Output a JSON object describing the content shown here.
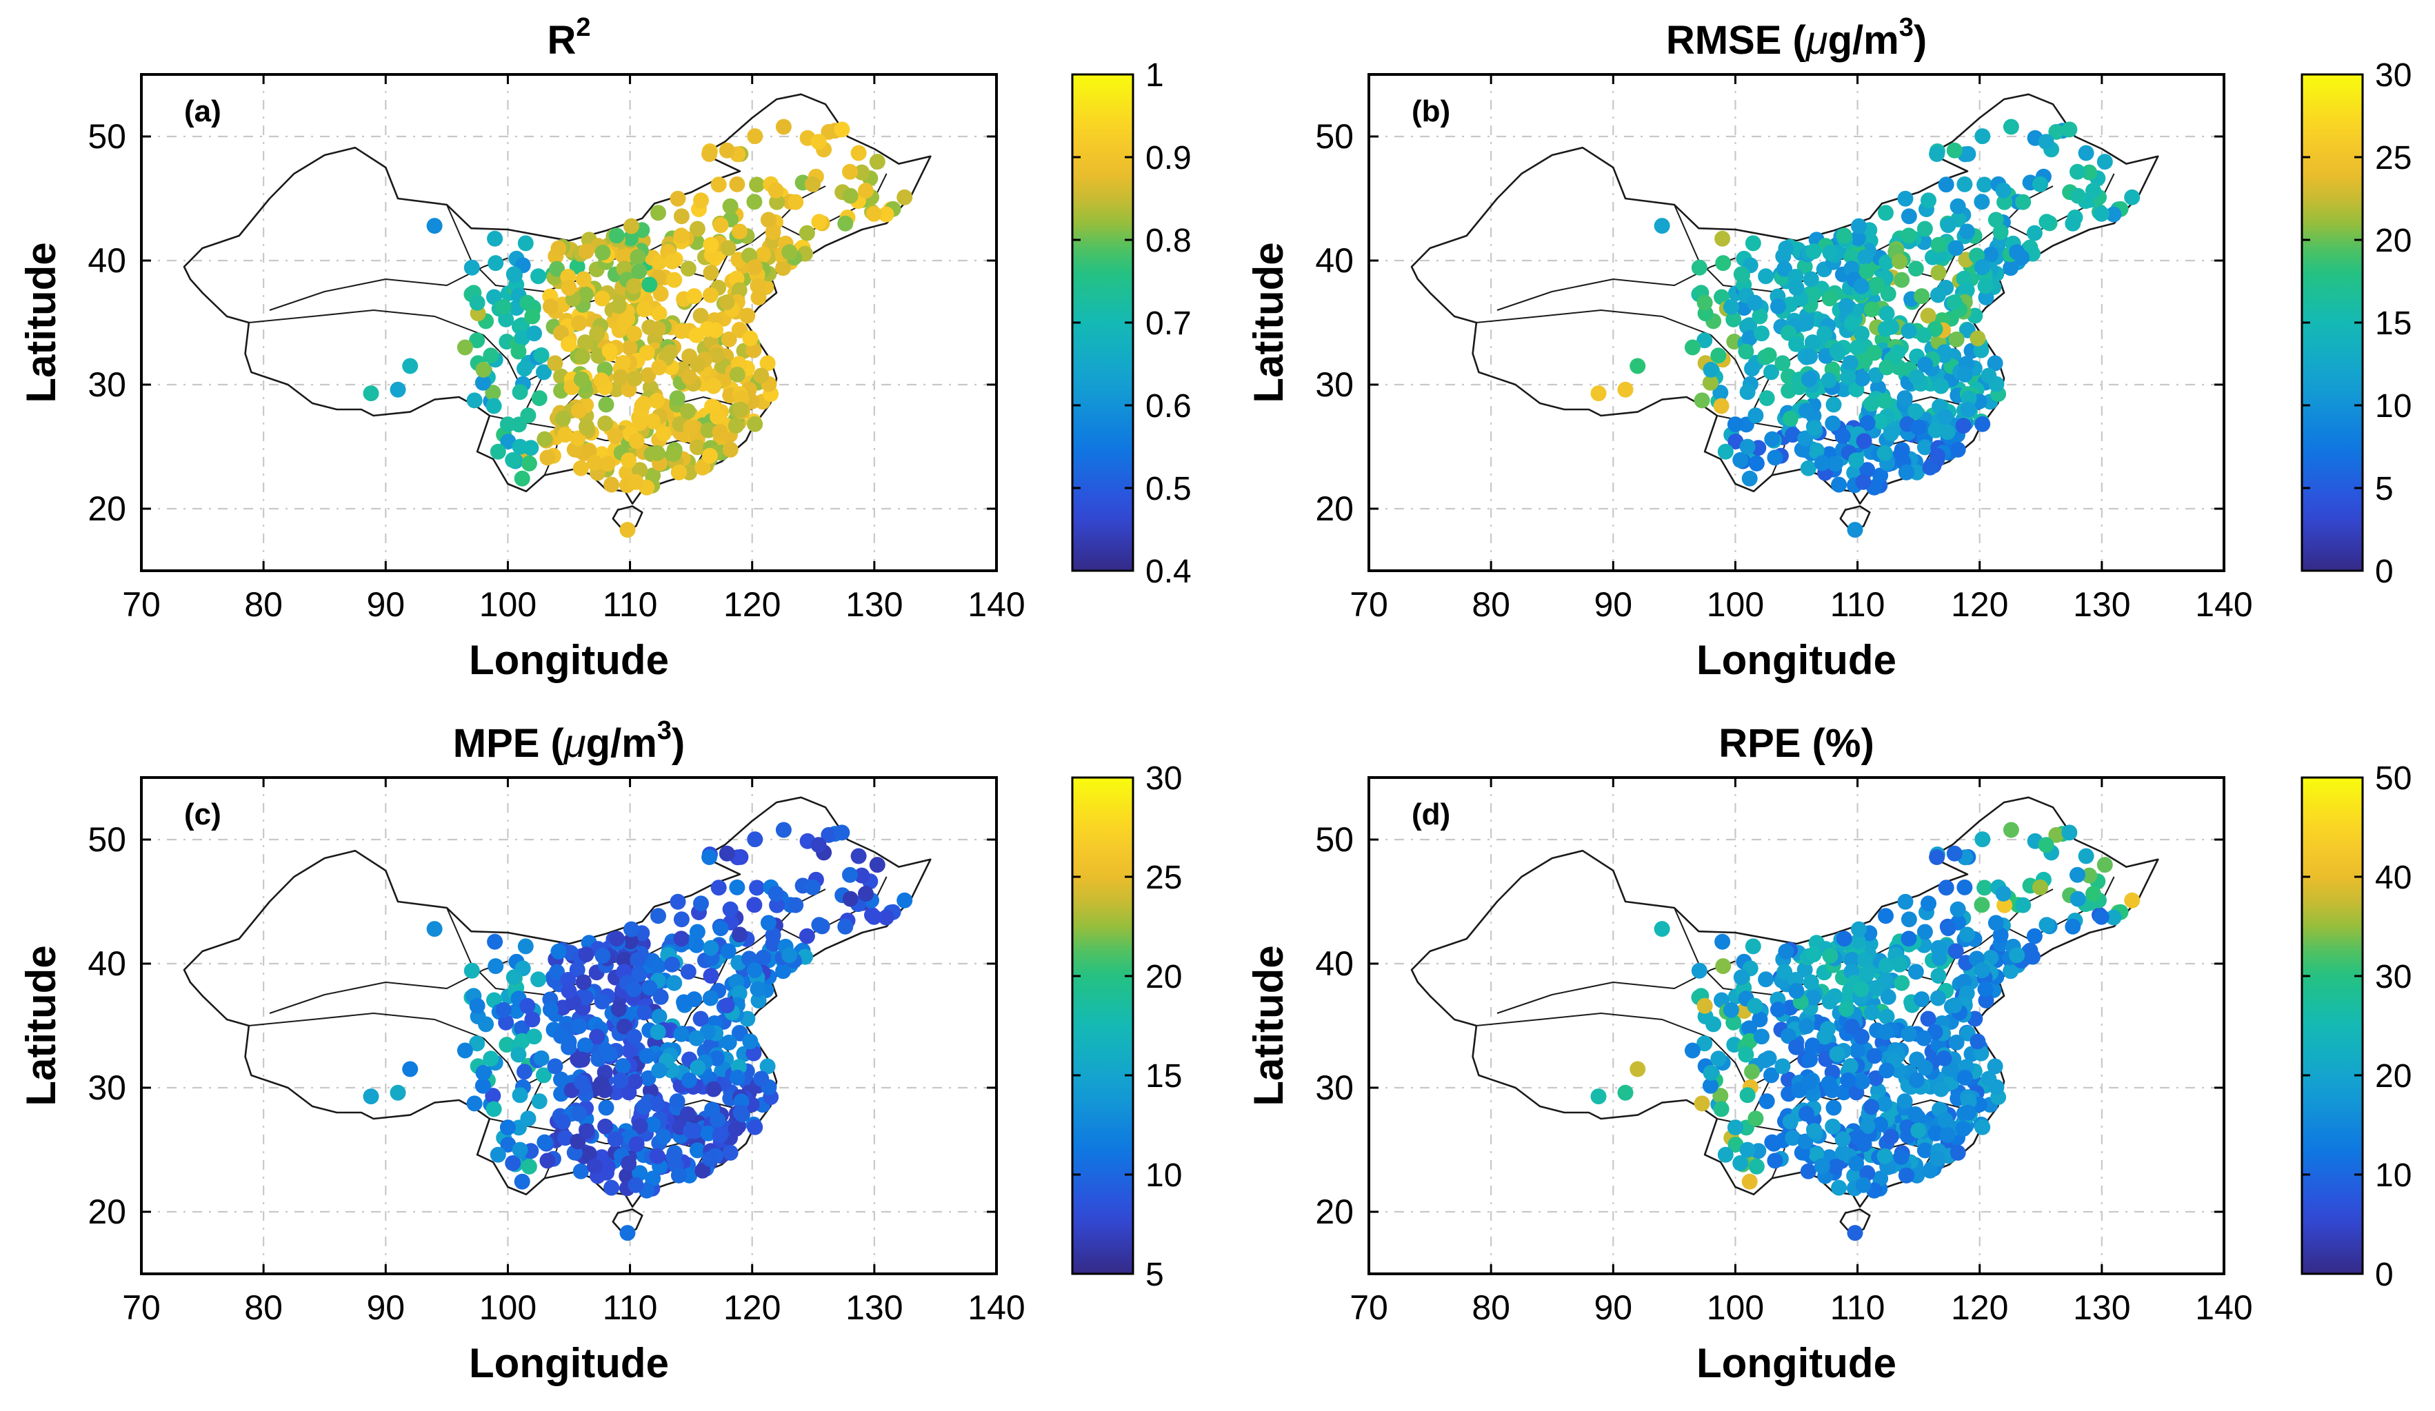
{
  "xlabel": "Longitude",
  "ylabel": "Latitude",
  "xticks": [
    "70",
    "80",
    "90",
    "100",
    "110",
    "120",
    "130",
    "140"
  ],
  "yticks": [
    "20",
    "30",
    "40",
    "50"
  ],
  "panels": [
    {
      "id": "a",
      "letter": "(a)",
      "title": "R",
      "title_sup": "2",
      "title_suffix": "",
      "cmin": 0.4,
      "cmax": 1.0,
      "cticks": [
        "0.4",
        "0.5",
        "0.6",
        "0.7",
        "0.8",
        "0.9",
        "1"
      ],
      "seed": 11,
      "bias": 0.78,
      "spread": 0.1
    },
    {
      "id": "b",
      "letter": "(b)",
      "title": "RMSE (",
      "title_mu": "μ",
      "title_unit": "g/m",
      "title_sup": "3",
      "title_suffix": ")",
      "cmin": 0,
      "cmax": 30,
      "cticks": [
        "0",
        "5",
        "10",
        "15",
        "20",
        "25",
        "30"
      ],
      "seed": 23,
      "bias": 0.45,
      "spread": 0.14
    },
    {
      "id": "c",
      "letter": "(c)",
      "title": "MPE (",
      "title_mu": "μ",
      "title_unit": "g/m",
      "title_sup": "3",
      "title_suffix": ")",
      "cmin": 5,
      "cmax": 30,
      "cticks": [
        "5",
        "10",
        "15",
        "20",
        "25",
        "30"
      ],
      "seed": 37,
      "bias": 0.16,
      "spread": 0.1
    },
    {
      "id": "d",
      "letter": "(d)",
      "title": "RPE (%)",
      "title_sup": "",
      "title_suffix": "",
      "cmin": 0,
      "cmax": 50,
      "cticks": [
        "0",
        "10",
        "20",
        "30",
        "40",
        "50"
      ],
      "seed": 53,
      "bias": 0.3,
      "spread": 0.12
    }
  ],
  "chart_data": [
    {
      "type": "scatter",
      "title": "R2",
      "xlabel": "Longitude",
      "ylabel": "Latitude",
      "xlim": [
        70,
        140
      ],
      "ylim": [
        15,
        55
      ],
      "colorbar": {
        "min": 0.4,
        "max": 1.0,
        "ticks": [
          0.4,
          0.5,
          0.6,
          0.7,
          0.8,
          0.9,
          1
        ]
      },
      "annotation": "(a)",
      "points_summary": "~600 monitoring sites across China; values mostly 0.8–0.95 in the east, 0.4–0.6 in the west"
    },
    {
      "type": "scatter",
      "title": "RMSE (μg/m3)",
      "xlabel": "Longitude",
      "ylabel": "Latitude",
      "xlim": [
        70,
        140
      ],
      "ylim": [
        15,
        55
      ],
      "colorbar": {
        "min": 0,
        "max": 30,
        "ticks": [
          0,
          5,
          10,
          15,
          20,
          25,
          30
        ]
      },
      "annotation": "(b)",
      "points_summary": "mostly 8–18 μg/m3; higher (20–28) in the North China Plain"
    },
    {
      "type": "scatter",
      "title": "MPE (μg/m3)",
      "xlabel": "Longitude",
      "ylabel": "Latitude",
      "xlim": [
        70,
        140
      ],
      "ylim": [
        15,
        55
      ],
      "colorbar": {
        "min": 5,
        "max": 30,
        "ticks": [
          5,
          10,
          15,
          20,
          25,
          30
        ]
      },
      "annotation": "(c)",
      "points_summary": "mostly 5–12 μg/m3; 12–18 in the north"
    },
    {
      "type": "scatter",
      "title": "RPE (%)",
      "xlabel": "Longitude",
      "ylabel": "Latitude",
      "xlim": [
        70,
        140
      ],
      "ylim": [
        15,
        55
      ],
      "colorbar": {
        "min": 0,
        "max": 50,
        "ticks": [
          0,
          10,
          20,
          30,
          40,
          50
        ]
      },
      "annotation": "(d)",
      "points_summary": "mostly 10–25%; higher (35–50%) in the northeast and far west"
    }
  ]
}
